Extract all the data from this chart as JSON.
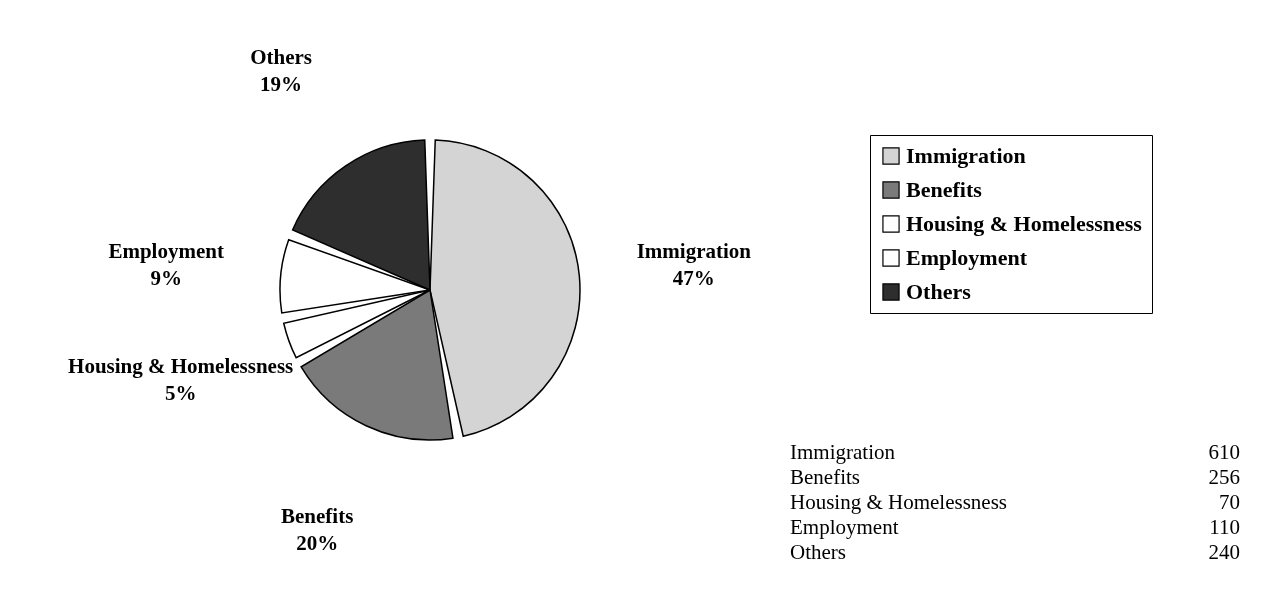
{
  "chart_data": {
    "type": "pie",
    "categories": [
      "Immigration",
      "Benefits",
      "Housing & Homelessness",
      "Employment",
      "Others"
    ],
    "values": [
      47,
      20,
      5,
      9,
      19
    ],
    "colors": [
      "#d4d4d4",
      "#7a7a7a",
      "#ffffff",
      "#ffffff",
      "#2e2e2e"
    ],
    "value_labels": [
      "47%",
      "20%",
      "5%",
      "9%",
      "19%"
    ],
    "annotations": [
      "610",
      "256",
      "70",
      "110",
      "240"
    ],
    "legend": "right"
  }
}
